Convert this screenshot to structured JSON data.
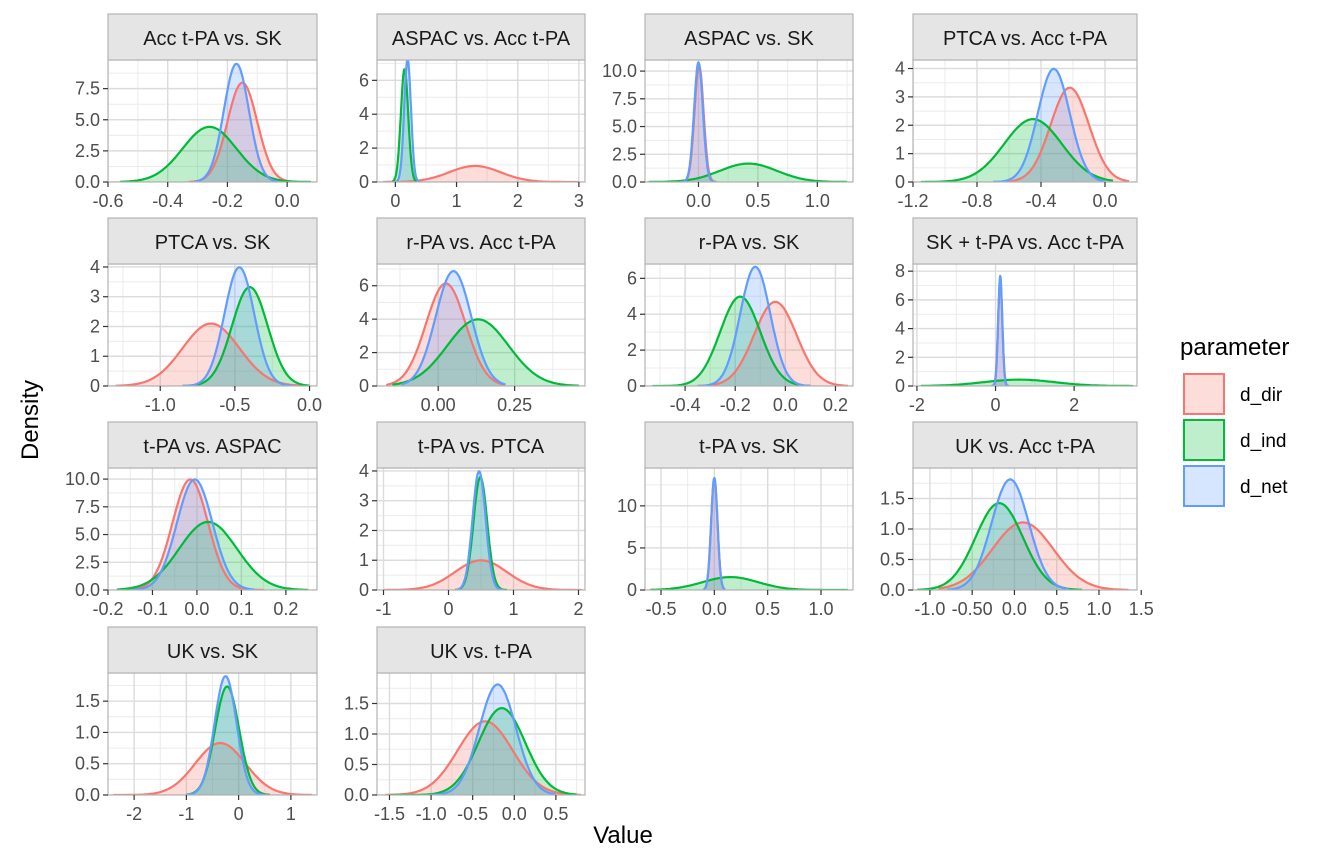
{
  "chart_data": {
    "type": "area",
    "xlabel": "Value",
    "ylabel": "Density",
    "legend": {
      "title": "parameter",
      "position": "right",
      "entries": [
        {
          "name": "d_dir",
          "color": "#F8766D"
        },
        {
          "name": "d_ind",
          "color": "#00BA38"
        },
        {
          "name": "d_net",
          "color": "#619CFF"
        }
      ]
    },
    "grid": true,
    "panels": [
      {
        "title": "Acc t-PA vs. SK",
        "xlim": [
          -0.6,
          0.1
        ],
        "ylim": [
          0,
          9.8
        ],
        "xticks": [
          {
            "v": -0.6,
            "l": "-0.6"
          },
          {
            "v": -0.4,
            "l": "-0.4"
          },
          {
            "v": -0.2,
            "l": "-0.2"
          },
          {
            "v": 0.0,
            "l": "0.0"
          }
        ],
        "yticks": [
          {
            "v": 0,
            "l": "0.0"
          },
          {
            "v": 2.5,
            "l": "2.5"
          },
          {
            "v": 5,
            "l": "5.0"
          },
          {
            "v": 7.5,
            "l": "7.5"
          }
        ],
        "series": [
          {
            "name": "d_dir",
            "mean": -0.15,
            "sd": 0.05,
            "min": -0.33,
            "max": 0.02
          },
          {
            "name": "d_ind",
            "mean": -0.26,
            "sd": 0.09,
            "min": -0.56,
            "max": 0.08
          },
          {
            "name": "d_net",
            "mean": -0.17,
            "sd": 0.042,
            "min": -0.31,
            "max": -0.03
          }
        ]
      },
      {
        "title": "ASPAC vs. Acc t-PA",
        "xlim": [
          -0.3,
          3.1
        ],
        "ylim": [
          0,
          7.2
        ],
        "xticks": [
          {
            "v": 0,
            "l": "0"
          },
          {
            "v": 1,
            "l": "1"
          },
          {
            "v": 2,
            "l": "2"
          },
          {
            "v": 3,
            "l": "3"
          }
        ],
        "yticks": [
          {
            "v": 0,
            "l": "0"
          },
          {
            "v": 2,
            "l": "2"
          },
          {
            "v": 4,
            "l": "4"
          },
          {
            "v": 6,
            "l": "6"
          }
        ],
        "series": [
          {
            "name": "d_dir",
            "mean": 1.3,
            "sd": 0.42,
            "min": -0.2,
            "max": 3.0
          },
          {
            "name": "d_ind",
            "mean": 0.15,
            "sd": 0.06,
            "min": -0.05,
            "max": 0.35
          },
          {
            "name": "d_net",
            "mean": 0.2,
            "sd": 0.055,
            "min": 0.0,
            "max": 0.4
          }
        ]
      },
      {
        "title": "ASPAC vs. SK",
        "xlim": [
          -0.45,
          1.3
        ],
        "ylim": [
          0,
          11
        ],
        "xticks": [
          {
            "v": 0.0,
            "l": "0.0"
          },
          {
            "v": 0.5,
            "l": "0.5"
          },
          {
            "v": 1.0,
            "l": "1.0"
          }
        ],
        "yticks": [
          {
            "v": 0,
            "l": "0.0"
          },
          {
            "v": 2.5,
            "l": "2.5"
          },
          {
            "v": 5,
            "l": "5.0"
          },
          {
            "v": 7.5,
            "l": "7.5"
          },
          {
            "v": 10,
            "l": "10.0"
          }
        ],
        "series": [
          {
            "name": "d_dir",
            "mean": 0.005,
            "sd": 0.038,
            "min": -0.15,
            "max": 0.15
          },
          {
            "name": "d_ind",
            "mean": 0.42,
            "sd": 0.24,
            "min": -0.42,
            "max": 1.25
          },
          {
            "name": "d_net",
            "mean": 0.0,
            "sd": 0.037,
            "min": -0.15,
            "max": 0.15
          }
        ]
      },
      {
        "title": "PTCA vs. Acc t-PA",
        "xlim": [
          -1.2,
          0.2
        ],
        "ylim": [
          0,
          4.3
        ],
        "xticks": [
          {
            "v": -1.2,
            "l": "-1.2"
          },
          {
            "v": -0.8,
            "l": "-0.8"
          },
          {
            "v": -0.4,
            "l": "-0.4"
          },
          {
            "v": 0.0,
            "l": "0.0"
          }
        ],
        "yticks": [
          {
            "v": 0,
            "l": "0"
          },
          {
            "v": 1,
            "l": "1"
          },
          {
            "v": 2,
            "l": "2"
          },
          {
            "v": 3,
            "l": "3"
          },
          {
            "v": 4,
            "l": "4"
          }
        ],
        "series": [
          {
            "name": "d_dir",
            "mean": -0.22,
            "sd": 0.12,
            "min": -0.7,
            "max": 0.15
          },
          {
            "name": "d_ind",
            "mean": -0.45,
            "sd": 0.18,
            "min": -1.15,
            "max": 0.05
          },
          {
            "name": "d_net",
            "mean": -0.32,
            "sd": 0.1,
            "min": -0.7,
            "max": 0.0
          }
        ]
      },
      {
        "title": "PTCA vs. SK",
        "xlim": [
          -1.35,
          0.05
        ],
        "ylim": [
          0,
          4.1
        ],
        "xticks": [
          {
            "v": -1.0,
            "l": "-1.0"
          },
          {
            "v": -0.5,
            "l": "-0.5"
          },
          {
            "v": 0.0,
            "l": "0.0"
          }
        ],
        "yticks": [
          {
            "v": 0,
            "l": "0"
          },
          {
            "v": 1,
            "l": "1"
          },
          {
            "v": 2,
            "l": "2"
          },
          {
            "v": 3,
            "l": "3"
          },
          {
            "v": 4,
            "l": "4"
          }
        ],
        "series": [
          {
            "name": "d_dir",
            "mean": -0.66,
            "sd": 0.19,
            "min": -1.3,
            "max": -0.05
          },
          {
            "name": "d_ind",
            "mean": -0.4,
            "sd": 0.12,
            "min": -0.85,
            "max": 0.0
          },
          {
            "name": "d_net",
            "mean": -0.47,
            "sd": 0.1,
            "min": -0.85,
            "max": -0.1
          }
        ]
      },
      {
        "title": "r-PA vs. Acc t-PA",
        "xlim": [
          -0.2,
          0.48
        ],
        "ylim": [
          0,
          7.3
        ],
        "xticks": [
          {
            "v": 0.0,
            "l": "0.00"
          },
          {
            "v": 0.25,
            "l": "0.25"
          }
        ],
        "yticks": [
          {
            "v": 0,
            "l": "0"
          },
          {
            "v": 2,
            "l": "2"
          },
          {
            "v": 4,
            "l": "4"
          },
          {
            "v": 6,
            "l": "6"
          }
        ],
        "series": [
          {
            "name": "d_dir",
            "mean": 0.025,
            "sd": 0.065,
            "min": -0.17,
            "max": 0.22
          },
          {
            "name": "d_ind",
            "mean": 0.13,
            "sd": 0.1,
            "min": -0.15,
            "max": 0.46
          },
          {
            "name": "d_net",
            "mean": 0.05,
            "sd": 0.058,
            "min": -0.12,
            "max": 0.22
          }
        ]
      },
      {
        "title": "r-PA vs. SK",
        "xlim": [
          -0.56,
          0.27
        ],
        "ylim": [
          0,
          6.8
        ],
        "xticks": [
          {
            "v": -0.4,
            "l": "-0.4"
          },
          {
            "v": -0.2,
            "l": "-0.2"
          },
          {
            "v": 0.0,
            "l": "0.0"
          },
          {
            "v": 0.2,
            "l": "0.2"
          }
        ],
        "yticks": [
          {
            "v": 0,
            "l": "0"
          },
          {
            "v": 2,
            "l": "2"
          },
          {
            "v": 4,
            "l": "4"
          },
          {
            "v": 6,
            "l": "6"
          }
        ],
        "series": [
          {
            "name": "d_dir",
            "mean": -0.04,
            "sd": 0.085,
            "min": -0.35,
            "max": 0.25
          },
          {
            "name": "d_ind",
            "mean": -0.18,
            "sd": 0.08,
            "min": -0.53,
            "max": 0.1
          },
          {
            "name": "d_net",
            "mean": -0.12,
            "sd": 0.06,
            "min": -0.35,
            "max": 0.1
          }
        ]
      },
      {
        "title": "SK + t-PA vs. Acc t-PA",
        "xlim": [
          -2.1,
          3.6
        ],
        "ylim": [
          0,
          8.5
        ],
        "xticks": [
          {
            "v": -2,
            "l": "-2"
          },
          {
            "v": 0,
            "l": "0"
          },
          {
            "v": 2,
            "l": "2"
          }
        ],
        "yticks": [
          {
            "v": 0,
            "l": "0"
          },
          {
            "v": 2,
            "l": "2"
          },
          {
            "v": 4,
            "l": "4"
          },
          {
            "v": 6,
            "l": "6"
          },
          {
            "v": 8,
            "l": "8"
          }
        ],
        "series": [
          {
            "name": "d_dir",
            "mean": 0.12,
            "sd": 0.055,
            "min": -0.1,
            "max": 0.35
          },
          {
            "name": "d_ind",
            "mean": 0.6,
            "sd": 0.9,
            "min": -1.9,
            "max": 3.5
          },
          {
            "name": "d_net",
            "mean": 0.12,
            "sd": 0.052,
            "min": -0.1,
            "max": 0.35
          }
        ]
      },
      {
        "title": "t-PA vs. ASPAC",
        "xlim": [
          -0.2,
          0.27
        ],
        "ylim": [
          0,
          11
        ],
        "xticks": [
          {
            "v": -0.2,
            "l": "-0.2"
          },
          {
            "v": -0.1,
            "l": "-0.1"
          },
          {
            "v": 0.0,
            "l": "0.0"
          },
          {
            "v": 0.1,
            "l": "0.1"
          },
          {
            "v": 0.2,
            "l": "0.2"
          }
        ],
        "yticks": [
          {
            "v": 0,
            "l": "0.0"
          },
          {
            "v": 2.5,
            "l": "2.5"
          },
          {
            "v": 5,
            "l": "5.0"
          },
          {
            "v": 7.5,
            "l": "7.5"
          },
          {
            "v": 10,
            "l": "10.0"
          }
        ],
        "series": [
          {
            "name": "d_dir",
            "mean": -0.015,
            "sd": 0.04,
            "min": -0.17,
            "max": 0.15
          },
          {
            "name": "d_ind",
            "mean": 0.025,
            "sd": 0.065,
            "min": -0.18,
            "max": 0.25
          },
          {
            "name": "d_net",
            "mean": -0.005,
            "sd": 0.04,
            "min": -0.15,
            "max": 0.13
          }
        ]
      },
      {
        "title": "t-PA vs. PTCA",
        "xlim": [
          -1.1,
          2.1
        ],
        "ylim": [
          0,
          4.1
        ],
        "xticks": [
          {
            "v": -1,
            "l": "-1"
          },
          {
            "v": 0,
            "l": "0"
          },
          {
            "v": 1,
            "l": "1"
          },
          {
            "v": 2,
            "l": "2"
          }
        ],
        "yticks": [
          {
            "v": 0,
            "l": "0"
          },
          {
            "v": 1,
            "l": "1"
          },
          {
            "v": 2,
            "l": "2"
          },
          {
            "v": 3,
            "l": "3"
          },
          {
            "v": 4,
            "l": "4"
          }
        ],
        "series": [
          {
            "name": "d_dir",
            "mean": 0.5,
            "sd": 0.4,
            "min": -1.0,
            "max": 2.05
          },
          {
            "name": "d_ind",
            "mean": 0.49,
            "sd": 0.105,
            "min": 0.1,
            "max": 0.9
          },
          {
            "name": "d_net",
            "mean": 0.47,
            "sd": 0.1,
            "min": 0.1,
            "max": 0.85
          }
        ]
      },
      {
        "title": "t-PA vs. SK",
        "xlim": [
          -0.65,
          1.3
        ],
        "ylim": [
          0,
          14.5
        ],
        "xticks": [
          {
            "v": -0.5,
            "l": "-0.5"
          },
          {
            "v": 0.0,
            "l": "0.0"
          },
          {
            "v": 0.5,
            "l": "0.5"
          },
          {
            "v": 1.0,
            "l": "1.0"
          }
        ],
        "yticks": [
          {
            "v": 0,
            "l": "0"
          },
          {
            "v": 5,
            "l": "5"
          },
          {
            "v": 10,
            "l": "10"
          }
        ],
        "series": [
          {
            "name": "d_dir",
            "mean": 0.0,
            "sd": 0.03,
            "min": -0.1,
            "max": 0.1
          },
          {
            "name": "d_ind",
            "mean": 0.15,
            "sd": 0.26,
            "min": -0.6,
            "max": 1.25
          },
          {
            "name": "d_net",
            "mean": 0.0,
            "sd": 0.03,
            "min": -0.1,
            "max": 0.1
          }
        ]
      },
      {
        "title": "UK vs. Acc t-PA",
        "xlim": [
          -1.2,
          1.45
        ],
        "ylim": [
          0,
          2.0
        ],
        "xticks": [
          {
            "v": -1.0,
            "l": "-1.0"
          },
          {
            "v": -0.5,
            "l": "-0.50"
          },
          {
            "v": 0.0,
            "l": "0.0"
          },
          {
            "v": 0.5,
            "l": "0.5"
          },
          {
            "v": 1.0,
            "l": "1.0"
          },
          {
            "v": 1.5,
            "l": "1.5"
          }
        ],
        "yticks": [
          {
            "v": 0,
            "l": "0.0"
          },
          {
            "v": 0.5,
            "l": "0.5"
          },
          {
            "v": 1.0,
            "l": "1.0"
          },
          {
            "v": 1.5,
            "l": "1.5"
          }
        ],
        "series": [
          {
            "name": "d_dir",
            "mean": 0.1,
            "sd": 0.36,
            "min": -0.9,
            "max": 1.35
          },
          {
            "name": "d_ind",
            "mean": -0.18,
            "sd": 0.28,
            "min": -1.15,
            "max": 0.8
          },
          {
            "name": "d_net",
            "mean": -0.05,
            "sd": 0.22,
            "min": -0.8,
            "max": 0.65
          }
        ]
      },
      {
        "title": "UK vs. SK",
        "xlim": [
          -2.5,
          1.5
        ],
        "ylim": [
          0,
          1.95
        ],
        "xticks": [
          {
            "v": -2,
            "l": "-2"
          },
          {
            "v": -1,
            "l": "-1"
          },
          {
            "v": 0,
            "l": "0"
          },
          {
            "v": 1,
            "l": "1"
          }
        ],
        "yticks": [
          {
            "v": 0,
            "l": "0.0"
          },
          {
            "v": 0.5,
            "l": "0.5"
          },
          {
            "v": 1.0,
            "l": "1.0"
          },
          {
            "v": 1.5,
            "l": "1.5"
          }
        ],
        "series": [
          {
            "name": "d_dir",
            "mean": -0.35,
            "sd": 0.48,
            "min": -2.4,
            "max": 1.4
          },
          {
            "name": "d_ind",
            "mean": -0.22,
            "sd": 0.23,
            "min": -1.0,
            "max": 0.6
          },
          {
            "name": "d_net",
            "mean": -0.25,
            "sd": 0.21,
            "min": -1.0,
            "max": 0.55
          }
        ]
      },
      {
        "title": "UK vs. t-PA",
        "xlim": [
          -1.65,
          0.85
        ],
        "ylim": [
          0,
          2.0
        ],
        "xticks": [
          {
            "v": -1.5,
            "l": "-1.5"
          },
          {
            "v": -1.0,
            "l": "-1.0"
          },
          {
            "v": -0.5,
            "l": "-0.5"
          },
          {
            "v": 0.0,
            "l": "0.0"
          },
          {
            "v": 0.5,
            "l": "0.5"
          }
        ],
        "yticks": [
          {
            "v": 0,
            "l": "0.0"
          },
          {
            "v": 0.5,
            "l": "0.5"
          },
          {
            "v": 1.0,
            "l": "1.0"
          },
          {
            "v": 1.5,
            "l": "1.5"
          }
        ],
        "series": [
          {
            "name": "d_dir",
            "mean": -0.35,
            "sd": 0.33,
            "min": -1.55,
            "max": 0.8
          },
          {
            "name": "d_ind",
            "mean": -0.15,
            "sd": 0.28,
            "min": -1.5,
            "max": 0.75
          },
          {
            "name": "d_net",
            "mean": -0.2,
            "sd": 0.22,
            "min": -1.0,
            "max": 0.5
          }
        ]
      }
    ]
  }
}
